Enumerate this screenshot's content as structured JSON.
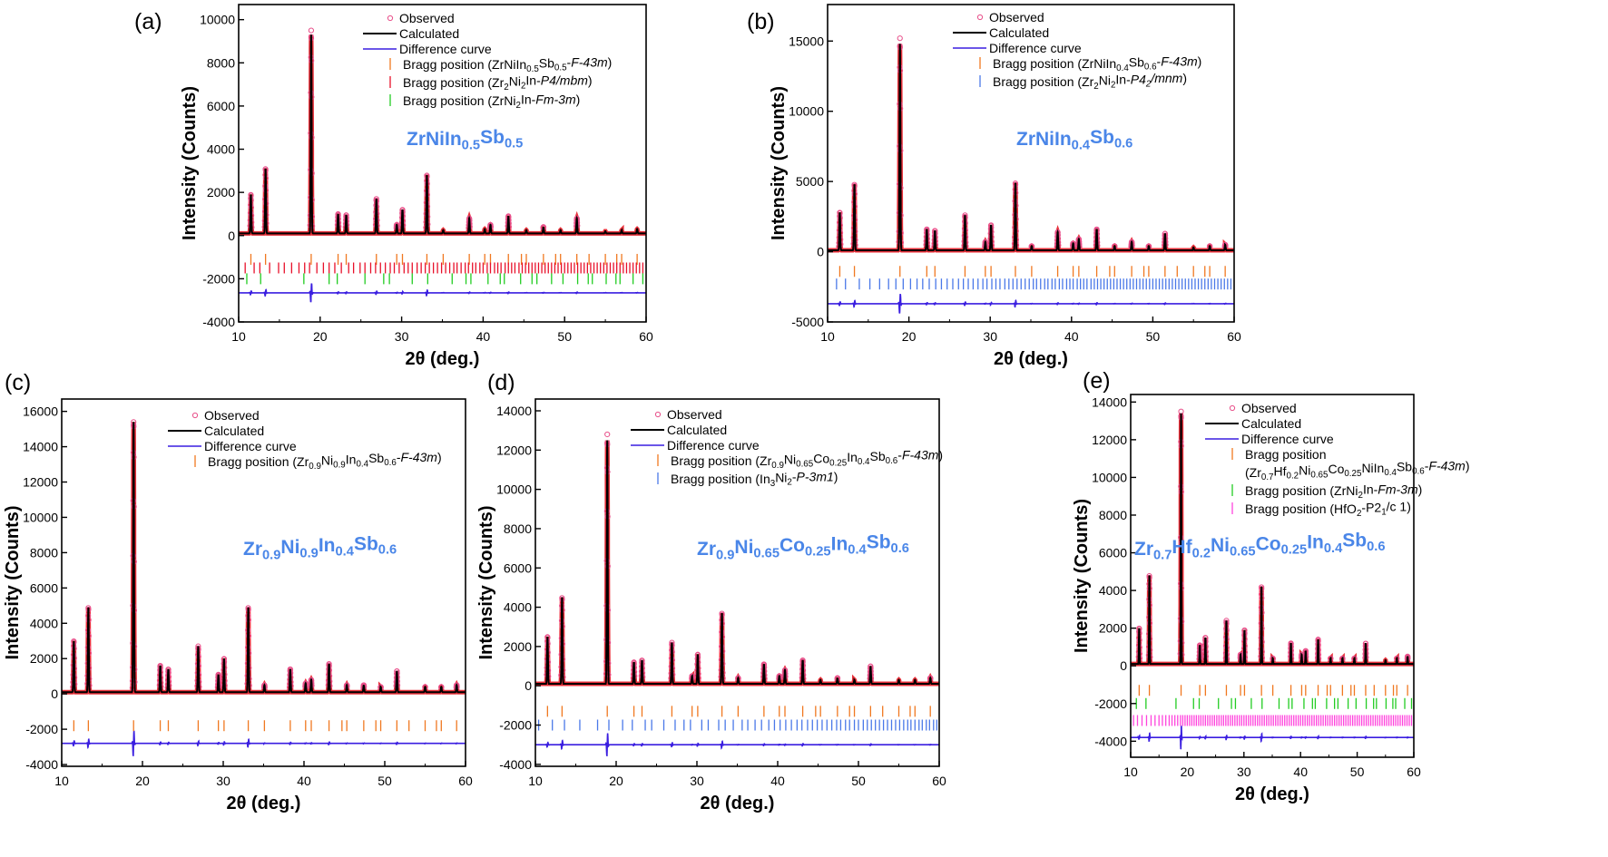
{
  "colors": {
    "observed": "#e8303a",
    "calculated": "#000000",
    "difference": "#3a1ee0",
    "compound_label": "#4a86e8",
    "orange": "#f07820",
    "red": "#e8102a",
    "green": "#22cc22",
    "blue": "#4a78e8",
    "magenta": "#ff44dd"
  },
  "chart_data": [
    {
      "type": "line",
      "panel": "(a)",
      "xlabel": "2θ (deg.)",
      "ylabel": "Intensity (Counts)",
      "xlim": [
        10,
        60
      ],
      "ylim": [
        -4000,
        10700
      ],
      "xticks": [
        10,
        20,
        30,
        40,
        50,
        60
      ],
      "yticks": [
        -4000,
        -2000,
        0,
        2000,
        4000,
        6000,
        8000,
        10000
      ],
      "compound": "ZrNiIn_{0.5}Sb_{0.5}",
      "peaks": {
        "x": [
          11.5,
          13.3,
          18.9,
          22.2,
          23.2,
          26.9,
          29.4,
          30.1,
          33.1,
          35.1,
          38.3,
          40.2,
          40.9,
          43.1,
          45.3,
          47.4,
          49.5,
          51.5,
          55.0,
          57.0,
          58.9
        ],
        "y": [
          1800,
          3000,
          9200,
          900,
          850,
          1600,
          400,
          1100,
          2700,
          150,
          700,
          200,
          400,
          800,
          150,
          300,
          150,
          700,
          100,
          150,
          200
        ]
      },
      "observed_max": 9500,
      "legend": [
        "Observed",
        "Calculated",
        "Difference curve",
        "Bragg position (ZrNiIn_{0.5}Sb_{0.5}-*F-43m*)",
        "Bragg position (Zr_{2}Ni_{2}In-*P4/mbm*)",
        "Bragg position (ZrNi_{2}In-*Fm-3m*)"
      ],
      "bragg": [
        {
          "color": "orange",
          "offset": -1100,
          "x": [
            11.5,
            13.3,
            18.9,
            22.2,
            23.2,
            26.9,
            29.4,
            30.1,
            33.1,
            35.1,
            38.3,
            40.2,
            40.9,
            43.1,
            44.7,
            45.3,
            47.4,
            48.9,
            49.5,
            51.5,
            53.0,
            55.0,
            56.4,
            57.0,
            58.9
          ]
        },
        {
          "color": "red",
          "offset": -1500,
          "x": [
            10.8,
            11.9,
            12.6,
            13.8,
            14.9,
            15.6,
            16.5,
            17.4,
            18.1,
            18.7,
            19.6,
            20.4,
            21.1,
            21.8,
            22.6,
            23.5,
            24.1,
            24.9,
            25.5,
            26.2,
            26.8,
            27.4,
            28.0,
            28.6,
            29.1,
            29.7,
            30.3,
            30.8,
            31.3,
            31.9,
            32.4,
            32.9,
            33.4,
            33.9,
            34.4,
            34.9,
            35.4,
            35.9,
            36.4,
            36.8,
            37.3,
            37.8,
            38.2,
            38.7,
            39.1,
            39.6,
            40.0,
            40.5,
            40.9,
            41.4,
            41.8,
            42.2,
            42.7,
            43.1,
            43.5,
            43.9,
            44.4,
            44.8,
            45.2,
            45.6,
            46.0,
            46.4,
            46.8,
            47.2,
            47.6,
            48.0,
            48.4,
            48.8,
            49.2,
            49.6,
            50.0,
            50.4,
            50.8,
            51.2,
            51.6,
            52.0,
            52.4,
            52.8,
            53.2,
            53.6,
            54.0,
            54.4,
            54.8,
            55.2,
            55.6,
            56.0,
            56.4,
            56.8,
            57.2,
            57.6,
            58.0,
            58.4,
            58.8,
            59.2,
            59.6
          ]
        },
        {
          "color": "green",
          "offset": -2000,
          "x": [
            11.0,
            12.7,
            18.0,
            21.1,
            22.1,
            25.5,
            27.8,
            28.5,
            31.3,
            33.2,
            36.2,
            37.9,
            38.5,
            40.6,
            42.1,
            42.6,
            44.6,
            46.0,
            46.6,
            48.4,
            49.8,
            51.6,
            52.9,
            53.4,
            55.1,
            56.3,
            56.8,
            58.4,
            59.6
          ]
        }
      ],
      "difference_offset": -2650
    },
    {
      "type": "line",
      "panel": "(b)",
      "xlabel": "2θ (deg.)",
      "ylabel": "Intensity (Counts)",
      "xlim": [
        10,
        60
      ],
      "ylim": [
        -5000,
        17600
      ],
      "xticks": [
        10,
        20,
        30,
        40,
        50,
        60
      ],
      "yticks": [
        -5000,
        0,
        5000,
        10000,
        15000
      ],
      "compound": "ZrNiIn_{0.4}Sb_{0.6}",
      "peaks": {
        "x": [
          11.5,
          13.3,
          18.9,
          22.2,
          23.2,
          26.9,
          29.4,
          30.1,
          33.1,
          35.1,
          38.3,
          40.2,
          40.9,
          43.1,
          45.3,
          47.4,
          49.5,
          51.5,
          55.0,
          57.0,
          58.9
        ],
        "y": [
          2700,
          4700,
          14700,
          1500,
          1400,
          2500,
          600,
          1800,
          4800,
          300,
          1300,
          500,
          800,
          1500,
          300,
          600,
          300,
          1200,
          200,
          300,
          400
        ]
      },
      "observed_max": 15200,
      "legend": [
        "Observed",
        "Calculated",
        "Difference curve",
        "Bragg position (ZrNiIn_{0.4}Sb_{0.6}-*F-43m*)",
        "Bragg position (Zr_{2}Ni_{2}In-*P4_{2}/mnm*)"
      ],
      "bragg": [
        {
          "color": "orange",
          "offset": -1400,
          "x": [
            11.5,
            13.3,
            18.9,
            22.2,
            23.2,
            26.9,
            29.4,
            30.1,
            33.1,
            35.1,
            38.3,
            40.2,
            40.9,
            43.1,
            44.7,
            45.3,
            47.4,
            48.9,
            49.5,
            51.5,
            53.0,
            55.0,
            56.4,
            57.0,
            58.9
          ]
        },
        {
          "color": "blue",
          "offset": -2300,
          "x": [
            11.1,
            12.2,
            13.9,
            15.2,
            16.4,
            17.5,
            18.4,
            19.3,
            20.2,
            21.0,
            21.7,
            22.5,
            23.3,
            24.0,
            24.7,
            25.4,
            26.1,
            26.7,
            27.3,
            27.9,
            28.5,
            29.1,
            29.6,
            30.2,
            30.7,
            31.2,
            31.8,
            32.3,
            32.8,
            33.3,
            33.8,
            34.3,
            34.8,
            35.3,
            35.7,
            36.2,
            36.7,
            37.1,
            37.6,
            38.0,
            38.5,
            38.9,
            39.4,
            39.8,
            40.2,
            40.7,
            41.1,
            41.5,
            41.9,
            42.4,
            42.8,
            43.2,
            43.6,
            44.0,
            44.4,
            44.8,
            45.2,
            45.6,
            46.0,
            46.4,
            46.8,
            47.2,
            47.6,
            48.0,
            48.4,
            48.8,
            49.2,
            49.6,
            50.0,
            50.4,
            50.8,
            51.2,
            51.6,
            52.0,
            52.4,
            52.8,
            53.2,
            53.6,
            54.0,
            54.4,
            54.8,
            55.2,
            55.6,
            56.0,
            56.4,
            56.8,
            57.2,
            57.6,
            58.0,
            58.4,
            58.8,
            59.2,
            59.6
          ]
        }
      ],
      "difference_offset": -3700
    },
    {
      "type": "line",
      "panel": "(c)",
      "xlabel": "2θ (deg.)",
      "ylabel": "Intensity (Counts)",
      "xlim": [
        10,
        60
      ],
      "ylim": [
        -4100,
        16700
      ],
      "xticks": [
        10,
        20,
        30,
        40,
        50,
        60
      ],
      "yticks": [
        -4000,
        -2000,
        0,
        2000,
        4000,
        6000,
        8000,
        10000,
        12000,
        14000,
        16000
      ],
      "compound": "Zr_{0.9}Ni_{0.9}In_{0.4}Sb_{0.6}",
      "peaks": {
        "x": [
          11.5,
          13.3,
          18.9,
          22.2,
          23.2,
          26.9,
          29.4,
          30.1,
          33.1,
          35.1,
          38.3,
          40.2,
          40.9,
          43.1,
          45.3,
          47.4,
          49.5,
          51.5,
          55.0,
          57.0,
          58.9
        ],
        "y": [
          2900,
          4800,
          15300,
          1500,
          1300,
          2600,
          1000,
          1900,
          4800,
          400,
          1300,
          500,
          700,
          1600,
          400,
          400,
          300,
          1200,
          300,
          300,
          400
        ]
      },
      "observed_max": 15400,
      "legend": [
        "Observed",
        "Calculated",
        "Difference curve",
        "Bragg position (Zr_{0.9}Ni_{0.9}In_{0.4}Sb_{0.6}-*F-43m*)"
      ],
      "bragg": [
        {
          "color": "orange",
          "offset": -1800,
          "x": [
            11.5,
            13.3,
            18.9,
            22.2,
            23.2,
            26.9,
            29.4,
            30.1,
            33.1,
            35.1,
            38.3,
            40.2,
            40.9,
            43.1,
            44.7,
            45.3,
            47.4,
            48.9,
            49.5,
            51.5,
            53.0,
            55.0,
            56.4,
            57.0,
            58.9
          ]
        }
      ],
      "difference_offset": -2800
    },
    {
      "type": "line",
      "panel": "(d)",
      "xlabel": "2θ (deg.)",
      "ylabel": "Intensity (Counts)",
      "xlim": [
        10,
        60
      ],
      "ylim": [
        -4100,
        14600
      ],
      "xticks": [
        10,
        20,
        30,
        40,
        50,
        60
      ],
      "yticks": [
        -4000,
        -2000,
        0,
        2000,
        4000,
        6000,
        8000,
        10000,
        12000,
        14000
      ],
      "compound": "Zr_{0.9}Ni_{0.65}Co_{0.25}In_{0.4}Sb_{0.6}",
      "peaks": {
        "x": [
          11.5,
          13.3,
          18.9,
          22.2,
          23.2,
          26.9,
          29.4,
          30.1,
          33.1,
          35.1,
          38.3,
          40.2,
          40.9,
          43.1,
          45.3,
          47.4,
          49.5,
          51.5,
          55.0,
          57.0,
          58.9
        ],
        "y": [
          2400,
          4400,
          12400,
          1100,
          1200,
          2100,
          400,
          1500,
          3600,
          300,
          1000,
          400,
          700,
          1200,
          200,
          300,
          200,
          900,
          200,
          200,
          300
        ]
      },
      "observed_max": 12800,
      "legend": [
        "Observed",
        "Calculated",
        "Difference curve",
        "Bragg position (Zr_{0.9}Ni_{0.65}Co_{0.25}In_{0.4}Sb_{0.6}-*F-43m*)",
        "Bragg position (In_{3}Ni_{2}-*P-3m1*)"
      ],
      "bragg": [
        {
          "color": "orange",
          "offset": -1300,
          "x": [
            11.5,
            13.3,
            18.9,
            22.2,
            23.2,
            26.9,
            29.4,
            30.1,
            33.1,
            35.1,
            38.3,
            40.2,
            40.9,
            43.1,
            44.7,
            45.3,
            47.4,
            48.9,
            49.5,
            51.5,
            53.0,
            55.0,
            56.4,
            57.0,
            58.9
          ]
        },
        {
          "color": "blue",
          "offset": -2000,
          "x": [
            10.4,
            12.1,
            13.6,
            15.5,
            17.7,
            19.1,
            20.8,
            22.0,
            23.6,
            24.4,
            25.9,
            27.3,
            28.4,
            29.2,
            30.6,
            31.4,
            32.7,
            33.5,
            34.5,
            35.6,
            36.3,
            37.2,
            38.0,
            38.9,
            39.6,
            40.3,
            41.0,
            41.7,
            42.4,
            43.0,
            43.7,
            44.3,
            44.9,
            45.5,
            46.1,
            46.7,
            47.3,
            47.8,
            48.4,
            48.9,
            49.5,
            50.0,
            50.6,
            51.1,
            51.6,
            52.1,
            52.6,
            53.1,
            53.6,
            54.1,
            54.6,
            55.1,
            55.6,
            56.1,
            56.5,
            57.0,
            57.5,
            57.9,
            58.4,
            58.8,
            59.3,
            59.7
          ]
        }
      ],
      "difference_offset": -3000
    },
    {
      "type": "line",
      "panel": "(e)",
      "xlabel": "2θ (deg.)",
      "ylabel": "Intensity (Counts)",
      "xlim": [
        10,
        60
      ],
      "ylim": [
        -4850,
        14400
      ],
      "xticks": [
        10,
        20,
        30,
        40,
        50,
        60
      ],
      "yticks": [
        -4000,
        -2000,
        0,
        2000,
        4000,
        6000,
        8000,
        10000,
        12000,
        14000
      ],
      "compound": "Zr_{0.7}Hf_{0.2}Ni_{0.65}Co_{0.25}In_{0.4}Sb_{0.6}",
      "peaks": {
        "x": [
          11.5,
          13.3,
          18.9,
          22.2,
          23.2,
          26.9,
          29.4,
          30.1,
          33.1,
          35.1,
          38.3,
          40.2,
          40.9,
          43.1,
          45.3,
          47.4,
          49.5,
          51.5,
          55.0,
          57.0,
          58.9
        ],
        "y": [
          1900,
          4700,
          13300,
          1000,
          1400,
          2300,
          500,
          1800,
          4100,
          300,
          1100,
          500,
          700,
          1300,
          300,
          300,
          300,
          1100,
          200,
          300,
          400
        ]
      },
      "observed_max": 13500,
      "legend": [
        "Observed",
        "Calculated",
        "Difference curve",
        "Bragg position",
        "(Zr_{0.7}Hf_{0.2}Ni_{0.65}Co_{0.25}NiIn_{0.4}Sb_{0.6}-*F-43m*)",
        "Bragg position (ZrNi_{2}In-*Fm-3m*)",
        "Bragg position (HfO_{2}-P2_{1}/c 1)"
      ],
      "bragg": [
        {
          "color": "orange",
          "offset": -1300,
          "x": [
            11.5,
            13.3,
            18.9,
            22.2,
            23.2,
            26.9,
            29.4,
            30.1,
            33.1,
            35.1,
            38.3,
            40.2,
            40.9,
            43.1,
            44.7,
            45.3,
            47.4,
            48.9,
            49.5,
            51.5,
            53.0,
            55.0,
            56.4,
            57.0,
            58.9
          ]
        },
        {
          "color": "green",
          "offset": -2000,
          "x": [
            11.0,
            12.7,
            18.0,
            21.1,
            22.1,
            25.5,
            27.8,
            28.5,
            31.3,
            33.2,
            36.2,
            37.9,
            38.5,
            40.6,
            42.1,
            42.6,
            44.6,
            46.0,
            46.6,
            48.4,
            49.8,
            51.6,
            52.9,
            53.4,
            55.1,
            56.3,
            56.8,
            58.4,
            59.6
          ]
        },
        {
          "color": "magenta",
          "offset": -2900,
          "x": [
            10.5,
            11.2,
            12.0,
            12.8,
            13.6,
            14.3,
            15.0,
            15.6,
            16.2,
            16.8,
            17.3,
            17.8,
            18.3,
            18.8,
            19.2,
            19.6,
            20.0,
            20.4,
            20.8,
            21.2,
            21.6,
            22.0,
            22.4,
            22.8,
            23.2,
            23.6,
            24.0,
            24.4,
            24.8,
            25.2,
            25.6,
            26.0,
            26.4,
            26.8,
            27.2,
            27.6,
            28.0,
            28.4,
            28.8,
            29.2,
            29.6,
            30.0,
            30.4,
            30.8,
            31.2,
            31.6,
            32.0,
            32.4,
            32.8,
            33.2,
            33.6,
            34.0,
            34.4,
            34.8,
            35.2,
            35.6,
            36.0,
            36.4,
            36.8,
            37.2,
            37.6,
            38.0,
            38.4,
            38.8,
            39.2,
            39.6,
            40.0,
            40.4,
            40.8,
            41.2,
            41.6,
            42.0,
            42.4,
            42.8,
            43.2,
            43.6,
            44.0,
            44.4,
            44.8,
            45.2,
            45.6,
            46.0,
            46.4,
            46.8,
            47.2,
            47.6,
            48.0,
            48.4,
            48.8,
            49.2,
            49.6,
            50.0,
            50.4,
            50.8,
            51.2,
            51.6,
            52.0,
            52.4,
            52.8,
            53.2,
            53.6,
            54.0,
            54.4,
            54.8,
            55.2,
            55.6,
            56.0,
            56.4,
            56.8,
            57.2,
            57.6,
            58.0,
            58.4,
            58.8,
            59.2,
            59.6
          ]
        }
      ],
      "difference_offset": -3800
    }
  ]
}
